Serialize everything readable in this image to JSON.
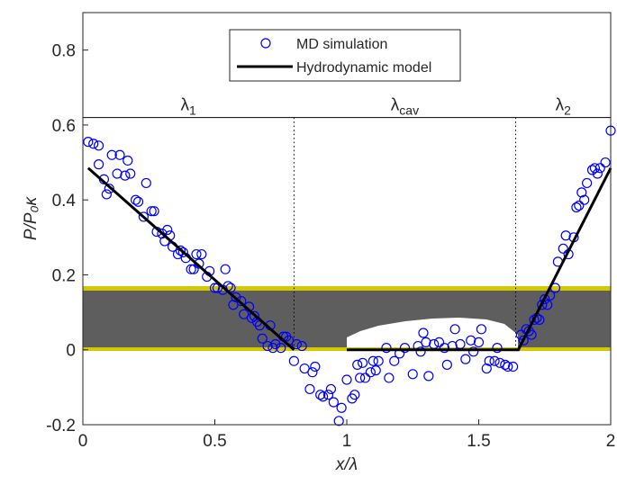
{
  "chart_data": {
    "type": "scatter",
    "xlabel": "x/λ",
    "ylabel": "P/P₀κ",
    "xlim": [
      0,
      2
    ],
    "xticks": [
      0,
      0.5,
      1,
      1.5,
      2
    ],
    "ylim": [
      -0.2,
      0.9
    ],
    "yticks": [
      -0.2,
      0,
      0.2,
      0.4,
      0.6,
      0.8
    ],
    "legend": "top",
    "region_line_y": 0.62,
    "dividers": [
      0.8,
      1.64
    ],
    "regions": [
      {
        "text": "λ",
        "sub": "1"
      },
      {
        "text": "λ",
        "sub": "cav"
      },
      {
        "text": "λ",
        "sub": "2"
      }
    ],
    "series": [
      {
        "name": "MD simulation",
        "color": "#0000ff",
        "marker": "circle",
        "x": [
          0.02,
          0.04,
          0.06,
          0.06,
          0.08,
          0.09,
          0.1,
          0.11,
          0.13,
          0.14,
          0.16,
          0.17,
          0.18,
          0.2,
          0.21,
          0.23,
          0.24,
          0.26,
          0.27,
          0.28,
          0.3,
          0.31,
          0.32,
          0.33,
          0.34,
          0.36,
          0.37,
          0.38,
          0.39,
          0.41,
          0.42,
          0.43,
          0.44,
          0.45,
          0.47,
          0.48,
          0.5,
          0.51,
          0.53,
          0.54,
          0.55,
          0.56,
          0.57,
          0.58,
          0.6,
          0.61,
          0.63,
          0.64,
          0.65,
          0.66,
          0.67,
          0.68,
          0.7,
          0.71,
          0.72,
          0.73,
          0.75,
          0.76,
          0.77,
          0.78,
          0.8,
          0.81,
          0.83,
          0.84,
          0.86,
          0.87,
          0.88,
          0.9,
          0.91,
          0.93,
          0.94,
          0.95,
          0.97,
          0.98,
          1.0,
          1.02,
          1.03,
          1.04,
          1.05,
          1.06,
          1.07,
          1.09,
          1.1,
          1.11,
          1.12,
          1.15,
          1.16,
          1.18,
          1.2,
          1.22,
          1.25,
          1.27,
          1.28,
          1.29,
          1.3,
          1.31,
          1.33,
          1.35,
          1.37,
          1.38,
          1.4,
          1.41,
          1.43,
          1.45,
          1.47,
          1.48,
          1.5,
          1.51,
          1.53,
          1.54,
          1.56,
          1.57,
          1.58,
          1.6,
          1.61,
          1.63,
          1.66,
          1.67,
          1.68,
          1.69,
          1.7,
          1.71,
          1.72,
          1.73,
          1.74,
          1.75,
          1.76,
          1.77,
          1.79,
          1.8,
          1.82,
          1.83,
          1.84,
          1.86,
          1.87,
          1.88,
          1.89,
          1.9,
          1.91,
          1.93,
          1.94,
          1.95,
          1.96,
          1.98,
          2.0
        ],
        "values": [
          0.555,
          0.55,
          0.545,
          0.495,
          0.455,
          0.415,
          0.43,
          0.52,
          0.47,
          0.52,
          0.465,
          0.505,
          0.47,
          0.4,
          0.395,
          0.355,
          0.445,
          0.37,
          0.37,
          0.315,
          0.31,
          0.29,
          0.32,
          0.305,
          0.275,
          0.255,
          0.265,
          0.26,
          0.245,
          0.215,
          0.215,
          0.255,
          0.23,
          0.255,
          0.195,
          0.21,
          0.165,
          0.165,
          0.16,
          0.215,
          0.17,
          0.165,
          0.12,
          0.14,
          0.13,
          0.095,
          0.115,
          0.085,
          0.09,
          0.075,
          0.065,
          0.03,
          0.01,
          0.065,
          0.005,
          0.015,
          0.005,
          0.035,
          0.035,
          0.025,
          -0.03,
          0.015,
          0.01,
          -0.05,
          -0.105,
          -0.06,
          -0.045,
          -0.12,
          -0.125,
          -0.12,
          -0.105,
          -0.14,
          -0.19,
          -0.155,
          -0.08,
          -0.13,
          -0.12,
          -0.04,
          -0.075,
          -0.035,
          -0.075,
          -0.06,
          -0.03,
          -0.055,
          -0.03,
          0.005,
          -0.075,
          -0.03,
          -0.01,
          0.005,
          -0.065,
          0.01,
          -0.005,
          0.045,
          0.02,
          -0.07,
          0.015,
          0.02,
          0.005,
          -0.04,
          0.01,
          0.055,
          0.015,
          -0.025,
          0.025,
          -0.005,
          0.02,
          0.055,
          -0.05,
          -0.03,
          -0.03,
          0.005,
          -0.035,
          -0.04,
          -0.045,
          -0.045,
          0.04,
          0.025,
          0.055,
          0.05,
          0.04,
          0.08,
          0.085,
          0.08,
          0.12,
          0.135,
          0.12,
          0.145,
          0.165,
          0.235,
          0.27,
          0.305,
          0.255,
          0.3,
          0.38,
          0.385,
          0.42,
          0.4,
          0.445,
          0.48,
          0.485,
          0.47,
          0.485,
          0.5,
          0.585
        ]
      },
      {
        "name": "Hydrodynamic model",
        "color": "#000000",
        "marker": "line",
        "x": [
          0.02,
          0.8,
          0.9,
          1.0,
          1.65,
          2.0
        ],
        "values": [
          0.485,
          0,
          null,
          0,
          0,
          0.485
        ]
      }
    ]
  }
}
